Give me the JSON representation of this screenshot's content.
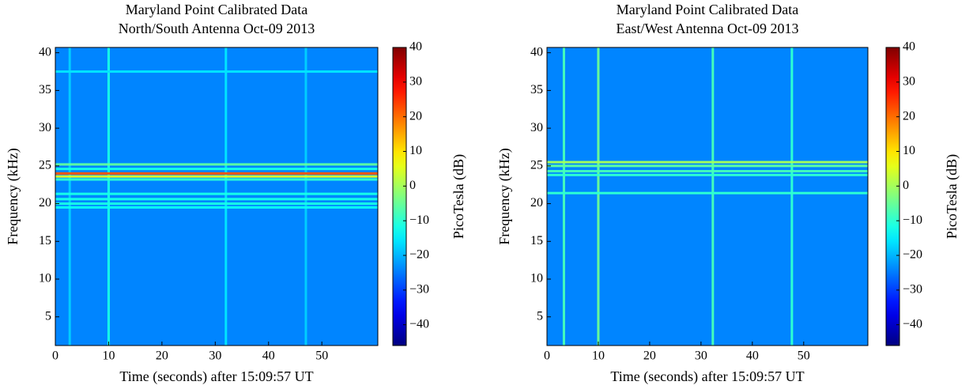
{
  "chart_data": [
    {
      "type": "spectrogram",
      "title": [
        "Maryland Point Calibrated Data",
        "North/South Antenna Oct-09 2013"
      ],
      "xlabel": "Time (seconds) after 15:09:57 UT",
      "ylabel": "Frequency (kHz)",
      "colorbar_label": "PicoTesla (dB)",
      "colormap": "jet",
      "xlim": [
        0,
        60.5
      ],
      "ylim": [
        1.2,
        40.7
      ],
      "clim": [
        -46,
        40
      ],
      "xticks": [
        0,
        10,
        20,
        30,
        40,
        50
      ],
      "yticks": [
        5,
        10,
        15,
        20,
        25,
        30,
        35,
        40
      ],
      "cticks": [
        {
          "value": -40,
          "label": "−40"
        },
        {
          "value": -30,
          "label": "−30"
        },
        {
          "value": -20,
          "label": "−20"
        },
        {
          "value": -10,
          "label": "−10"
        },
        0,
        10,
        20,
        30,
        40
      ],
      "background_level": -24,
      "lines": [
        {
          "frequency": 37.5,
          "level": -16
        },
        {
          "frequency": 25.2,
          "level": -6
        },
        {
          "frequency": 24.6,
          "level": -12
        },
        {
          "frequency": 24.0,
          "level": 22
        },
        {
          "frequency": 23.6,
          "level": 4
        },
        {
          "frequency": 23.2,
          "level": -10
        },
        {
          "frequency": 21.3,
          "level": -12
        },
        {
          "frequency": 20.6,
          "level": -12
        },
        {
          "frequency": 20.0,
          "level": -12
        },
        {
          "frequency": 19.5,
          "level": -13
        }
      ],
      "bursts": [
        {
          "time": 10,
          "level": -12
        },
        {
          "time": 32,
          "level": -16
        },
        {
          "time": 2.7,
          "level": -18
        },
        {
          "time": 47,
          "level": -18
        }
      ]
    },
    {
      "type": "spectrogram",
      "title": [
        "Maryland Point Calibrated Data",
        "East/West Antenna Oct-09 2013"
      ],
      "xlabel": "Time (seconds) after 15:09:57 UT",
      "ylabel": "Frequency (kHz)",
      "colorbar_label": "PicoTesla (dB)",
      "colormap": "jet",
      "xlim": [
        0,
        62.5
      ],
      "ylim": [
        1.2,
        40.7
      ],
      "clim": [
        -46,
        40
      ],
      "xticks": [
        0,
        10,
        20,
        30,
        40,
        50
      ],
      "yticks": [
        5,
        10,
        15,
        20,
        25,
        30,
        35,
        40
      ],
      "cticks": [
        {
          "value": -40,
          "label": "−40"
        },
        {
          "value": -30,
          "label": "−30"
        },
        {
          "value": -20,
          "label": "−20"
        },
        {
          "value": -10,
          "label": "−10"
        },
        0,
        10,
        20,
        30,
        40
      ],
      "background_level": -24,
      "lines": [
        {
          "frequency": 25.5,
          "level": 0
        },
        {
          "frequency": 25.0,
          "level": -6
        },
        {
          "frequency": 24.3,
          "level": -8
        },
        {
          "frequency": 23.8,
          "level": -10
        },
        {
          "frequency": 21.4,
          "level": -10
        }
      ],
      "bursts": [
        {
          "time": 3.3,
          "level": -8
        },
        {
          "time": 10,
          "level": -5
        },
        {
          "time": 32.3,
          "level": -8
        },
        {
          "time": 47.7,
          "level": -10
        }
      ]
    }
  ]
}
